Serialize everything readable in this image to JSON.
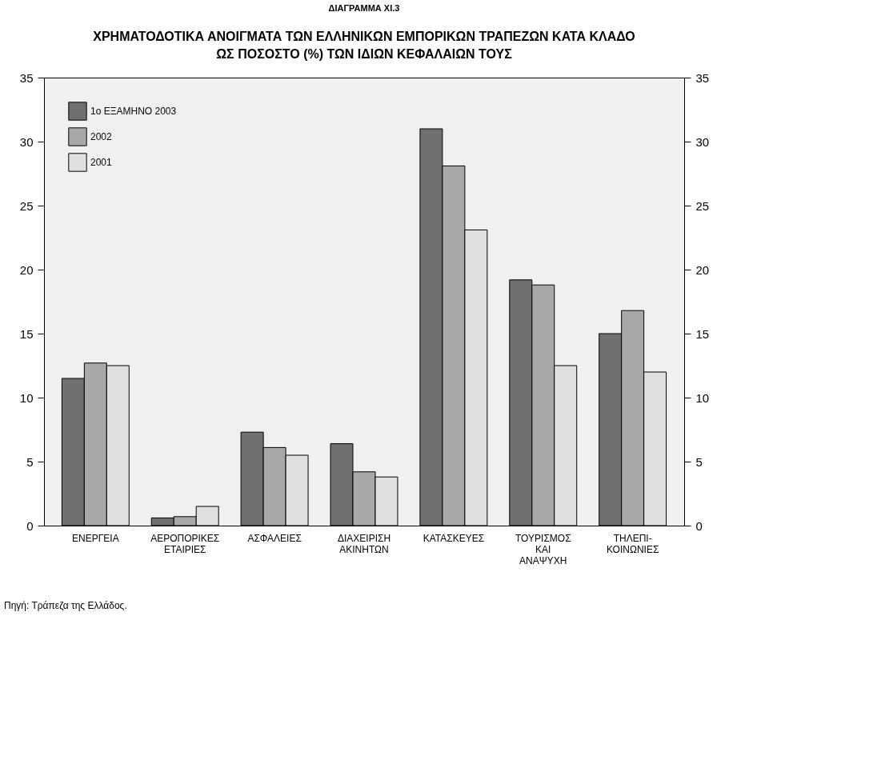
{
  "chart_data": {
    "type": "bar",
    "title": "ΔΙΑΓΡΑΜΜΑ XI.3",
    "subtitle": "ΧΡΗΜΑΤΟΔΟΤΙΚΑ ΑΝΟΙΓΜΑΤΑ ΤΩΝ ΕΛΛΗΝΙΚΩΝ ΕΜΠΟΡΙΚΩΝ ΤΡΑΠΕΖΩΝ ΚΑΤΑ ΚΛΑΔΟ\nΩΣ ΠΟΣΟΣΤΟ (%) ΤΩΝ ΙΔΙΩΝ ΚΕΦΑΛΑΙΩΝ ΤΟΥΣ",
    "annotations": [
      "Πηγή: Τράπεζα της Ελλάδος."
    ],
    "categories": [
      "ΕΝΕΡΓΕΙΑ",
      "ΑΕΡΟΠΟΡΙΚΕΣ\nΕΤΑΙΡΙΕΣ",
      "ΑΣΦΑΛΕΙΕΣ",
      "ΔΙΑΧΕΙΡΙΣΗ\nΑΚΙΝΗΤΩΝ",
      "ΚΑΤΑΣΚΕΥΕΣ",
      "ΤΟΥΡΙΣΜΟΣ\nΚΑΙ\nΑΝΑΨΥΧΗ",
      "ΤΗΛΕΠΙ-\nΚΟΙΝΩΝΙΕΣ"
    ],
    "series": [
      {
        "name": "1ο ΕΞΑΜΗΝΟ 2003",
        "color": "#707070",
        "values": [
          11.5,
          0.6,
          7.3,
          6.4,
          31.0,
          19.2,
          15.0
        ]
      },
      {
        "name": "2002",
        "color": "#a8a8a8",
        "values": [
          12.7,
          0.7,
          6.1,
          4.2,
          28.1,
          18.8,
          16.8
        ]
      },
      {
        "name": "2001",
        "color": "#e0e0e0",
        "values": [
          12.5,
          1.5,
          5.5,
          3.8,
          23.1,
          12.5,
          12.0
        ]
      }
    ],
    "ylim": [
      0,
      35
    ],
    "yticks": [
      0,
      5,
      10,
      15,
      20,
      25,
      30,
      35
    ],
    "y2lim": [
      0,
      35
    ],
    "y2ticks": [
      0,
      5,
      10,
      15,
      20,
      25,
      30,
      35
    ],
    "grid": false,
    "legend": "top left"
  }
}
